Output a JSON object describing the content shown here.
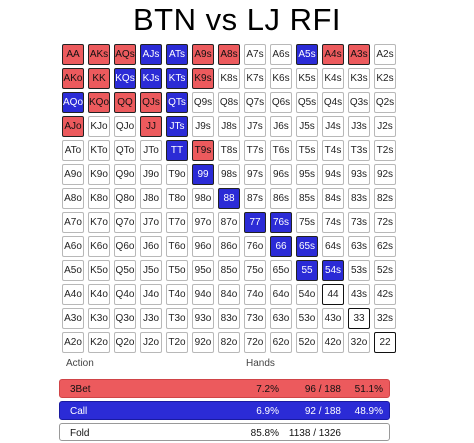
{
  "title": "BTN vs LJ RFI",
  "colors": {
    "threebet": "#ec5a5d",
    "call": "#2b2bd6",
    "fold": "#ffffff"
  },
  "grid": [
    [
      [
        "AA",
        "r"
      ],
      [
        "AKs",
        "r"
      ],
      [
        "AQs",
        "r"
      ],
      [
        "AJs",
        "b"
      ],
      [
        "ATs",
        "b"
      ],
      [
        "A9s",
        "r"
      ],
      [
        "A8s",
        "r"
      ],
      [
        "A7s",
        ""
      ],
      [
        "A6s",
        ""
      ],
      [
        "A5s",
        "b"
      ],
      [
        "A4s",
        "r"
      ],
      [
        "A3s",
        "r"
      ],
      [
        "A2s",
        ""
      ]
    ],
    [
      [
        "AKo",
        "r"
      ],
      [
        "KK",
        "r"
      ],
      [
        "KQs",
        "b"
      ],
      [
        "KJs",
        "b"
      ],
      [
        "KTs",
        "b"
      ],
      [
        "K9s",
        "r"
      ],
      [
        "K8s",
        ""
      ],
      [
        "K7s",
        ""
      ],
      [
        "K6s",
        ""
      ],
      [
        "K5s",
        ""
      ],
      [
        "K4s",
        ""
      ],
      [
        "K3s",
        ""
      ],
      [
        "K2s",
        ""
      ]
    ],
    [
      [
        "AQo",
        "b"
      ],
      [
        "KQo",
        "r"
      ],
      [
        "QQ",
        "r"
      ],
      [
        "QJs",
        "r"
      ],
      [
        "QTs",
        "b"
      ],
      [
        "Q9s",
        ""
      ],
      [
        "Q8s",
        ""
      ],
      [
        "Q7s",
        ""
      ],
      [
        "Q6s",
        ""
      ],
      [
        "Q5s",
        ""
      ],
      [
        "Q4s",
        ""
      ],
      [
        "Q3s",
        ""
      ],
      [
        "Q2s",
        ""
      ]
    ],
    [
      [
        "AJo",
        "r"
      ],
      [
        "KJo",
        ""
      ],
      [
        "QJo",
        ""
      ],
      [
        "JJ",
        "r"
      ],
      [
        "JTs",
        "b"
      ],
      [
        "J9s",
        ""
      ],
      [
        "J8s",
        ""
      ],
      [
        "J7s",
        ""
      ],
      [
        "J6s",
        ""
      ],
      [
        "J5s",
        ""
      ],
      [
        "J4s",
        ""
      ],
      [
        "J3s",
        ""
      ],
      [
        "J2s",
        ""
      ]
    ],
    [
      [
        "ATo",
        ""
      ],
      [
        "KTo",
        ""
      ],
      [
        "QTo",
        ""
      ],
      [
        "JTo",
        ""
      ],
      [
        "TT",
        "b"
      ],
      [
        "T9s",
        "r"
      ],
      [
        "T8s",
        ""
      ],
      [
        "T7s",
        ""
      ],
      [
        "T6s",
        ""
      ],
      [
        "T5s",
        ""
      ],
      [
        "T4s",
        ""
      ],
      [
        "T3s",
        ""
      ],
      [
        "T2s",
        ""
      ]
    ],
    [
      [
        "A9o",
        ""
      ],
      [
        "K9o",
        ""
      ],
      [
        "Q9o",
        ""
      ],
      [
        "J9o",
        ""
      ],
      [
        "T9o",
        ""
      ],
      [
        "99",
        "b"
      ],
      [
        "98s",
        ""
      ],
      [
        "97s",
        ""
      ],
      [
        "96s",
        ""
      ],
      [
        "95s",
        ""
      ],
      [
        "94s",
        ""
      ],
      [
        "93s",
        ""
      ],
      [
        "92s",
        ""
      ]
    ],
    [
      [
        "A8o",
        ""
      ],
      [
        "K8o",
        ""
      ],
      [
        "Q8o",
        ""
      ],
      [
        "J8o",
        ""
      ],
      [
        "T8o",
        ""
      ],
      [
        "98o",
        ""
      ],
      [
        "88",
        "b"
      ],
      [
        "87s",
        ""
      ],
      [
        "86s",
        ""
      ],
      [
        "85s",
        ""
      ],
      [
        "84s",
        ""
      ],
      [
        "83s",
        ""
      ],
      [
        "82s",
        ""
      ]
    ],
    [
      [
        "A7o",
        ""
      ],
      [
        "K7o",
        ""
      ],
      [
        "Q7o",
        ""
      ],
      [
        "J7o",
        ""
      ],
      [
        "T7o",
        ""
      ],
      [
        "97o",
        ""
      ],
      [
        "87o",
        ""
      ],
      [
        "77",
        "b"
      ],
      [
        "76s",
        "b"
      ],
      [
        "75s",
        ""
      ],
      [
        "74s",
        ""
      ],
      [
        "73s",
        ""
      ],
      [
        "72s",
        ""
      ]
    ],
    [
      [
        "A6o",
        ""
      ],
      [
        "K6o",
        ""
      ],
      [
        "Q6o",
        ""
      ],
      [
        "J6o",
        ""
      ],
      [
        "T6o",
        ""
      ],
      [
        "96o",
        ""
      ],
      [
        "86o",
        ""
      ],
      [
        "76o",
        ""
      ],
      [
        "66",
        "b"
      ],
      [
        "65s",
        "b"
      ],
      [
        "64s",
        ""
      ],
      [
        "63s",
        ""
      ],
      [
        "62s",
        ""
      ]
    ],
    [
      [
        "A5o",
        ""
      ],
      [
        "K5o",
        ""
      ],
      [
        "Q5o",
        ""
      ],
      [
        "J5o",
        ""
      ],
      [
        "T5o",
        ""
      ],
      [
        "95o",
        ""
      ],
      [
        "85o",
        ""
      ],
      [
        "75o",
        ""
      ],
      [
        "65o",
        ""
      ],
      [
        "55",
        "b"
      ],
      [
        "54s",
        "b"
      ],
      [
        "53s",
        ""
      ],
      [
        "52s",
        ""
      ]
    ],
    [
      [
        "A4o",
        ""
      ],
      [
        "K4o",
        ""
      ],
      [
        "Q4o",
        ""
      ],
      [
        "J4o",
        ""
      ],
      [
        "T4o",
        ""
      ],
      [
        "94o",
        ""
      ],
      [
        "84o",
        ""
      ],
      [
        "74o",
        ""
      ],
      [
        "64o",
        ""
      ],
      [
        "54o",
        ""
      ],
      [
        "44",
        "k"
      ],
      [
        "43s",
        ""
      ],
      [
        "42s",
        ""
      ]
    ],
    [
      [
        "A3o",
        ""
      ],
      [
        "K3o",
        ""
      ],
      [
        "Q3o",
        ""
      ],
      [
        "J3o",
        ""
      ],
      [
        "T3o",
        ""
      ],
      [
        "93o",
        ""
      ],
      [
        "83o",
        ""
      ],
      [
        "73o",
        ""
      ],
      [
        "63o",
        ""
      ],
      [
        "53o",
        ""
      ],
      [
        "43o",
        ""
      ],
      [
        "33",
        "k"
      ],
      [
        "32s",
        ""
      ]
    ],
    [
      [
        "A2o",
        ""
      ],
      [
        "K2o",
        ""
      ],
      [
        "Q2o",
        ""
      ],
      [
        "J2o",
        ""
      ],
      [
        "T2o",
        ""
      ],
      [
        "92o",
        ""
      ],
      [
        "82o",
        ""
      ],
      [
        "72o",
        ""
      ],
      [
        "62o",
        ""
      ],
      [
        "52o",
        ""
      ],
      [
        "42o",
        ""
      ],
      [
        "32o",
        ""
      ],
      [
        "22",
        "k"
      ]
    ]
  ],
  "summary": {
    "headers": {
      "action": "Action",
      "hands": "Hands"
    },
    "rows": [
      {
        "action": "3Bet",
        "percent": "7.2%",
        "hands": "96 / 188",
        "share": "51.1%"
      },
      {
        "action": "Call",
        "percent": "6.9%",
        "hands": "92 / 188",
        "share": "48.9%"
      },
      {
        "action": "Fold",
        "percent": "85.8%",
        "hands": "1138 / 1326",
        "share": ""
      }
    ]
  }
}
